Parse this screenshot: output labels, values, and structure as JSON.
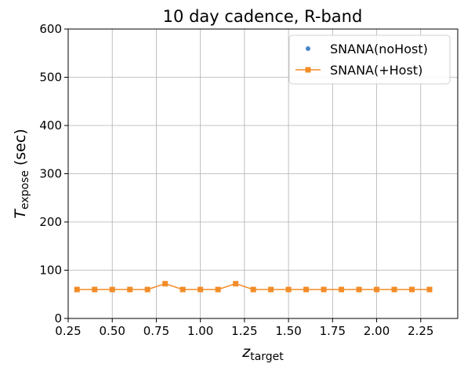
{
  "chart_data": {
    "type": "line",
    "title": "10 day cadence, R-band",
    "xlabel": {
      "main": "z",
      "sub": "target"
    },
    "ylabel": {
      "main": "T",
      "sub": "expose",
      "rest": "(sec)"
    },
    "x": [
      0.3,
      0.4,
      0.5,
      0.6,
      0.7,
      0.8,
      0.9,
      1.0,
      1.1,
      1.2,
      1.3,
      1.4,
      1.5,
      1.6,
      1.7,
      1.8,
      1.9,
      2.0,
      2.1,
      2.2,
      2.3
    ],
    "series": [
      {
        "name": "SNANA(noHost)",
        "color": "#4a86c8",
        "marker": "circle",
        "line": false,
        "values": [
          60,
          60,
          60,
          60,
          60,
          72,
          60,
          60,
          60,
          72,
          60,
          60,
          60,
          60,
          60,
          60,
          60,
          60,
          60,
          60,
          60
        ]
      },
      {
        "name": "SNANA(+Host)",
        "color": "#f28c28",
        "marker": "square",
        "line": true,
        "values": [
          60,
          60,
          60,
          60,
          60,
          72,
          60,
          60,
          60,
          72,
          60,
          60,
          60,
          60,
          60,
          60,
          60,
          60,
          60,
          60,
          60
        ]
      }
    ],
    "xlim": [
      0.25,
      2.46
    ],
    "xticks": [
      {
        "value": 0.25,
        "label": "0.25"
      },
      {
        "value": 0.5,
        "label": "0.50"
      },
      {
        "value": 0.75,
        "label": "0.75"
      },
      {
        "value": 1.0,
        "label": "1.00"
      },
      {
        "value": 1.25,
        "label": "1.25"
      },
      {
        "value": 1.5,
        "label": "1.50"
      },
      {
        "value": 1.75,
        "label": "1.75"
      },
      {
        "value": 2.0,
        "label": "2.00"
      },
      {
        "value": 2.25,
        "label": "2.25"
      }
    ],
    "ylim": [
      0,
      600
    ],
    "yticks": [
      0,
      100,
      200,
      300,
      400,
      500,
      600
    ],
    "grid": true,
    "legend": "upper-right"
  }
}
